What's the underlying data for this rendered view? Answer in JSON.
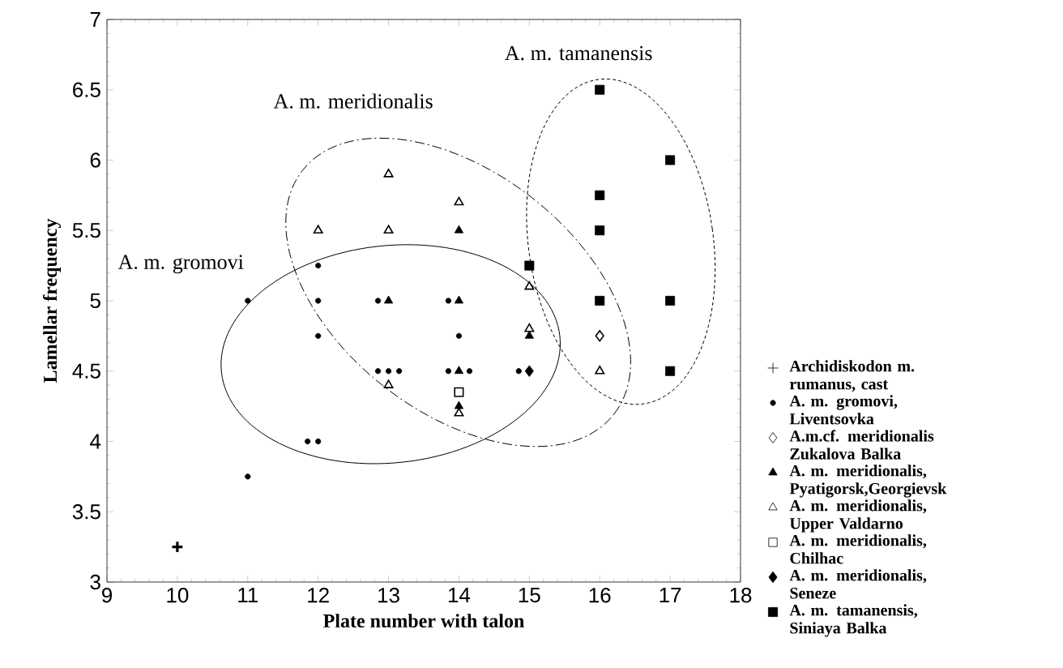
{
  "chart_data": {
    "type": "scatter",
    "xlabel": "Plate number with talon",
    "ylabel": "Lamellar frequency",
    "xlim": [
      9,
      18
    ],
    "ylim": [
      3,
      7
    ],
    "xticks": [
      9,
      10,
      11,
      12,
      13,
      14,
      15,
      16,
      17,
      18
    ],
    "yticks": [
      3,
      3.5,
      4,
      4.5,
      5,
      5.5,
      6,
      6.5,
      7
    ],
    "legend": "right",
    "annotations": [
      "A. m. gromovi",
      "A. m. meridionalis",
      "A. m. tamanensis"
    ],
    "series": [
      {
        "name": "Archidiskodon m. rumanus, cast",
        "color": "#000000",
        "marker": "cross",
        "x": [
          10
        ],
        "values": [
          3.25
        ]
      },
      {
        "name": "A. m. gromovi, Liventsovka",
        "color": "#000000",
        "marker": "circle",
        "x": [
          11,
          11,
          12,
          12,
          12,
          11.85,
          12,
          12.85,
          12.85,
          13,
          13.15,
          13.85,
          14,
          13.85,
          14.15,
          14.85
        ],
        "values": [
          5,
          3.75,
          5.25,
          5,
          4.75,
          4,
          4,
          5,
          4.5,
          4.5,
          4.5,
          5,
          4.75,
          4.5,
          4.5,
          4.5
        ]
      },
      {
        "name": "A.m.cf. meridionalis Zukalova Balka",
        "color": "#000000",
        "marker": "diamond-open",
        "x": [
          16
        ],
        "values": [
          4.75
        ]
      },
      {
        "name": "A. m. meridionalis, Pyatigorsk,Georgievsk",
        "color": "#000000",
        "marker": "triangle",
        "x": [
          13,
          14,
          14,
          14,
          14,
          15
        ],
        "values": [
          5,
          5.5,
          5,
          4.5,
          4.25,
          4.75
        ]
      },
      {
        "name": "A. m. meridionalis, Upper Valdarno",
        "color": "#000000",
        "marker": "triangle-open",
        "x": [
          12,
          13,
          13,
          13,
          14,
          14,
          15,
          15,
          16
        ],
        "values": [
          5.5,
          5.9,
          5.5,
          4.4,
          5.7,
          4.2,
          5.1,
          4.8,
          4.5
        ]
      },
      {
        "name": "A. m. meridionalis, Chilhac",
        "color": "#000000",
        "marker": "square-open",
        "x": [
          14
        ],
        "values": [
          4.35
        ]
      },
      {
        "name": "A. m. meridionalis, Seneze",
        "color": "#000000",
        "marker": "diamond",
        "x": [
          15
        ],
        "values": [
          4.5
        ]
      },
      {
        "name": "A. m. tamanensis, Siniaya Balka",
        "color": "#000000",
        "marker": "square",
        "x": [
          15,
          16,
          16,
          16,
          16,
          17,
          17,
          17
        ],
        "values": [
          5.25,
          6.5,
          5.75,
          5.5,
          5,
          6,
          5,
          4.5
        ]
      }
    ]
  }
}
